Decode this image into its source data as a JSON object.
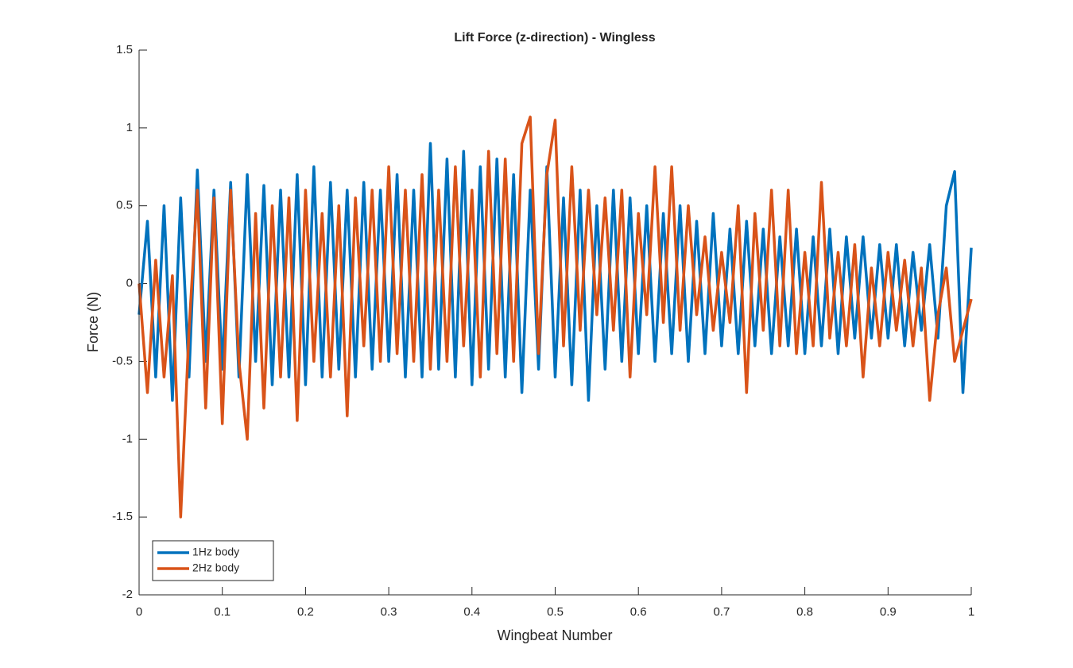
{
  "chart_data": {
    "type": "line",
    "title": "Lift Force (z-direction) - Wingless",
    "x_label": "Wingbeat Number",
    "y_label": "Force (N)",
    "x": [
      0,
      0.01,
      0.02,
      0.03,
      0.04,
      0.05,
      0.06,
      0.07,
      0.08,
      0.09,
      0.1,
      0.11,
      0.12,
      0.13,
      0.14,
      0.15,
      0.16,
      0.17,
      0.18,
      0.19,
      0.2,
      0.21,
      0.22,
      0.23,
      0.24,
      0.25,
      0.26,
      0.27,
      0.28,
      0.29,
      0.3,
      0.31,
      0.32,
      0.33,
      0.34,
      0.35,
      0.36,
      0.37,
      0.38,
      0.39,
      0.4,
      0.41,
      0.42,
      0.43,
      0.44,
      0.45,
      0.46,
      0.47,
      0.48,
      0.49,
      0.5,
      0.51,
      0.52,
      0.53,
      0.54,
      0.55,
      0.56,
      0.57,
      0.58,
      0.59,
      0.6,
      0.61,
      0.62,
      0.63,
      0.64,
      0.65,
      0.66,
      0.67,
      0.68,
      0.69,
      0.7,
      0.71,
      0.72,
      0.73,
      0.74,
      0.75,
      0.76,
      0.77,
      0.78,
      0.79,
      0.8,
      0.81,
      0.82,
      0.83,
      0.84,
      0.85,
      0.86,
      0.87,
      0.88,
      0.89,
      0.9,
      0.91,
      0.92,
      0.93,
      0.94,
      0.95,
      0.96,
      0.97,
      0.98,
      0.99,
      1
    ],
    "series": [
      {
        "name": "1Hz body",
        "color": "#0072bd",
        "values": [
          -0.2,
          0.4,
          -0.6,
          0.5,
          -0.75,
          0.55,
          -0.6,
          0.73,
          -0.5,
          0.6,
          -0.55,
          0.65,
          -0.6,
          0.7,
          -0.5,
          0.63,
          -0.65,
          0.6,
          -0.6,
          0.7,
          -0.65,
          0.75,
          -0.6,
          0.65,
          -0.55,
          0.6,
          -0.6,
          0.65,
          -0.55,
          0.6,
          -0.5,
          0.7,
          -0.6,
          0.6,
          -0.6,
          0.9,
          -0.55,
          0.8,
          -0.6,
          0.85,
          -0.65,
          0.75,
          -0.55,
          0.8,
          -0.6,
          0.7,
          -0.7,
          0.6,
          -0.55,
          0.75,
          -0.6,
          0.55,
          -0.65,
          0.6,
          -0.75,
          0.5,
          -0.55,
          0.6,
          -0.5,
          0.55,
          -0.45,
          0.5,
          -0.5,
          0.45,
          -0.45,
          0.5,
          -0.5,
          0.4,
          -0.45,
          0.45,
          -0.4,
          0.35,
          -0.45,
          0.4,
          -0.4,
          0.35,
          -0.45,
          0.3,
          -0.4,
          0.35,
          -0.45,
          0.3,
          -0.4,
          0.35,
          -0.45,
          0.3,
          -0.35,
          0.3,
          -0.35,
          0.25,
          -0.35,
          0.25,
          -0.4,
          0.2,
          -0.3,
          0.25,
          -0.35,
          0.5,
          0.72,
          -0.7,
          0.23
        ]
      },
      {
        "name": "2Hz body",
        "color": "#d95319",
        "values": [
          0,
          -0.7,
          0.15,
          -0.6,
          0.05,
          -1.5,
          -0.3,
          0.6,
          -0.8,
          0.55,
          -0.9,
          0.6,
          -0.5,
          -1.0,
          0.45,
          -0.8,
          0.5,
          -0.6,
          0.55,
          -0.88,
          0.6,
          -0.5,
          0.45,
          -0.6,
          0.5,
          -0.85,
          0.55,
          -0.4,
          0.6,
          -0.5,
          0.75,
          -0.45,
          0.6,
          -0.5,
          0.7,
          -0.55,
          0.6,
          -0.5,
          0.75,
          -0.4,
          0.6,
          -0.6,
          0.85,
          -0.45,
          0.8,
          -0.5,
          0.9,
          1.07,
          -0.45,
          0.7,
          1.05,
          -0.4,
          0.75,
          -0.3,
          0.6,
          -0.2,
          0.55,
          -0.3,
          0.6,
          -0.6,
          0.45,
          -0.2,
          0.75,
          -0.25,
          0.75,
          -0.3,
          0.5,
          -0.2,
          0.3,
          -0.3,
          0.2,
          -0.25,
          0.5,
          -0.7,
          0.45,
          -0.3,
          0.6,
          -0.4,
          0.6,
          -0.45,
          0.2,
          -0.4,
          0.65,
          -0.35,
          0.2,
          -0.4,
          0.25,
          -0.6,
          0.1,
          -0.4,
          0.2,
          -0.3,
          0.15,
          -0.4,
          0.1,
          -0.75,
          -0.2,
          0.1,
          -0.5,
          -0.3,
          -0.1
        ]
      }
    ],
    "xlim": [
      0,
      1
    ],
    "xticks": [
      0,
      0.1,
      0.2,
      0.3,
      0.4,
      0.5,
      0.6,
      0.7,
      0.8,
      0.9,
      1
    ],
    "ylim": [
      -2,
      1.5
    ],
    "yticks": [
      -2,
      -1.5,
      -1,
      -0.5,
      0,
      0.5,
      1,
      1.5
    ],
    "grid": false,
    "legend": "southwest"
  }
}
